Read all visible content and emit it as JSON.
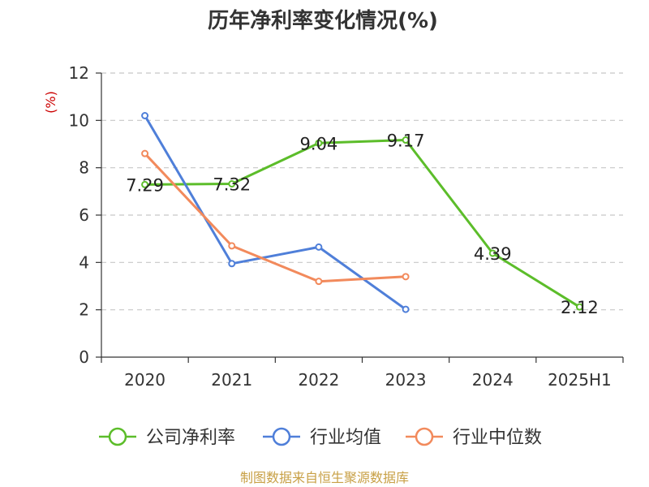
{
  "chart_data": {
    "type": "line",
    "title": "历年净利率变化情况(%)",
    "ylabel": "(%)",
    "xlabel": "",
    "categories": [
      "2020",
      "2021",
      "2022",
      "2023",
      "2024",
      "2025H1"
    ],
    "ylim": [
      0,
      12
    ],
    "yticks": [
      0,
      2,
      4,
      6,
      8,
      10,
      12
    ],
    "grid": true,
    "legend_position": "bottom",
    "series": [
      {
        "name": "公司净利率",
        "color": "#5cbd2a",
        "values": [
          7.29,
          7.32,
          9.04,
          9.17,
          4.39,
          2.12
        ],
        "labels": [
          "7.29",
          "7.32",
          "9.04",
          "9.17",
          "4.39",
          "2.12"
        ]
      },
      {
        "name": "行业均值",
        "color": "#4f7fd9",
        "values": [
          10.2,
          3.95,
          4.65,
          2.02,
          null,
          null
        ]
      },
      {
        "name": "行业中位数",
        "color": "#f28a5c",
        "values": [
          8.6,
          4.7,
          3.2,
          3.4,
          null,
          null
        ]
      }
    ]
  },
  "source": "制图数据来自恒生聚源数据库"
}
